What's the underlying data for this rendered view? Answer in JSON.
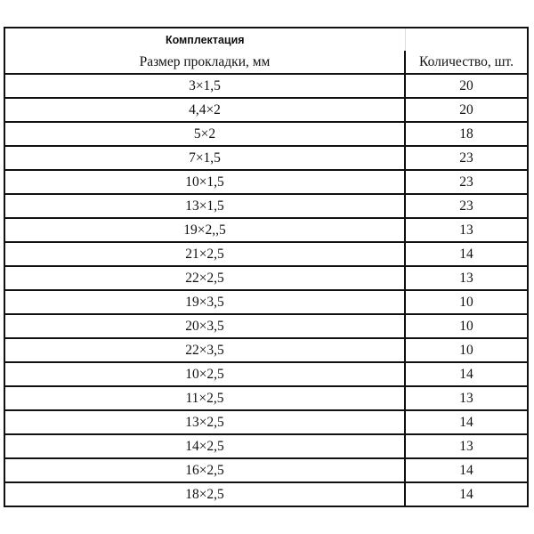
{
  "table": {
    "title": "Комплектация",
    "headers": [
      "Размер прокладки, мм",
      "Количество, шт."
    ],
    "rows": [
      [
        "3×1,5",
        "20"
      ],
      [
        "4,4×2",
        "20"
      ],
      [
        "5×2",
        "18"
      ],
      [
        "7×1,5",
        "23"
      ],
      [
        "10×1,5",
        "23"
      ],
      [
        "13×1,5",
        "23"
      ],
      [
        "19×2,,5",
        "13"
      ],
      [
        "21×2,5",
        "14"
      ],
      [
        "22×2,5",
        "13"
      ],
      [
        "19×3,5",
        "10"
      ],
      [
        "20×3,5",
        "10"
      ],
      [
        "22×3,5",
        "10"
      ],
      [
        "10×2,5",
        "14"
      ],
      [
        "11×2,5",
        "13"
      ],
      [
        "13×2,5",
        "14"
      ],
      [
        "14×2,5",
        "13"
      ],
      [
        "16×2,5",
        "14"
      ],
      [
        "18×2,5",
        "14"
      ]
    ]
  }
}
